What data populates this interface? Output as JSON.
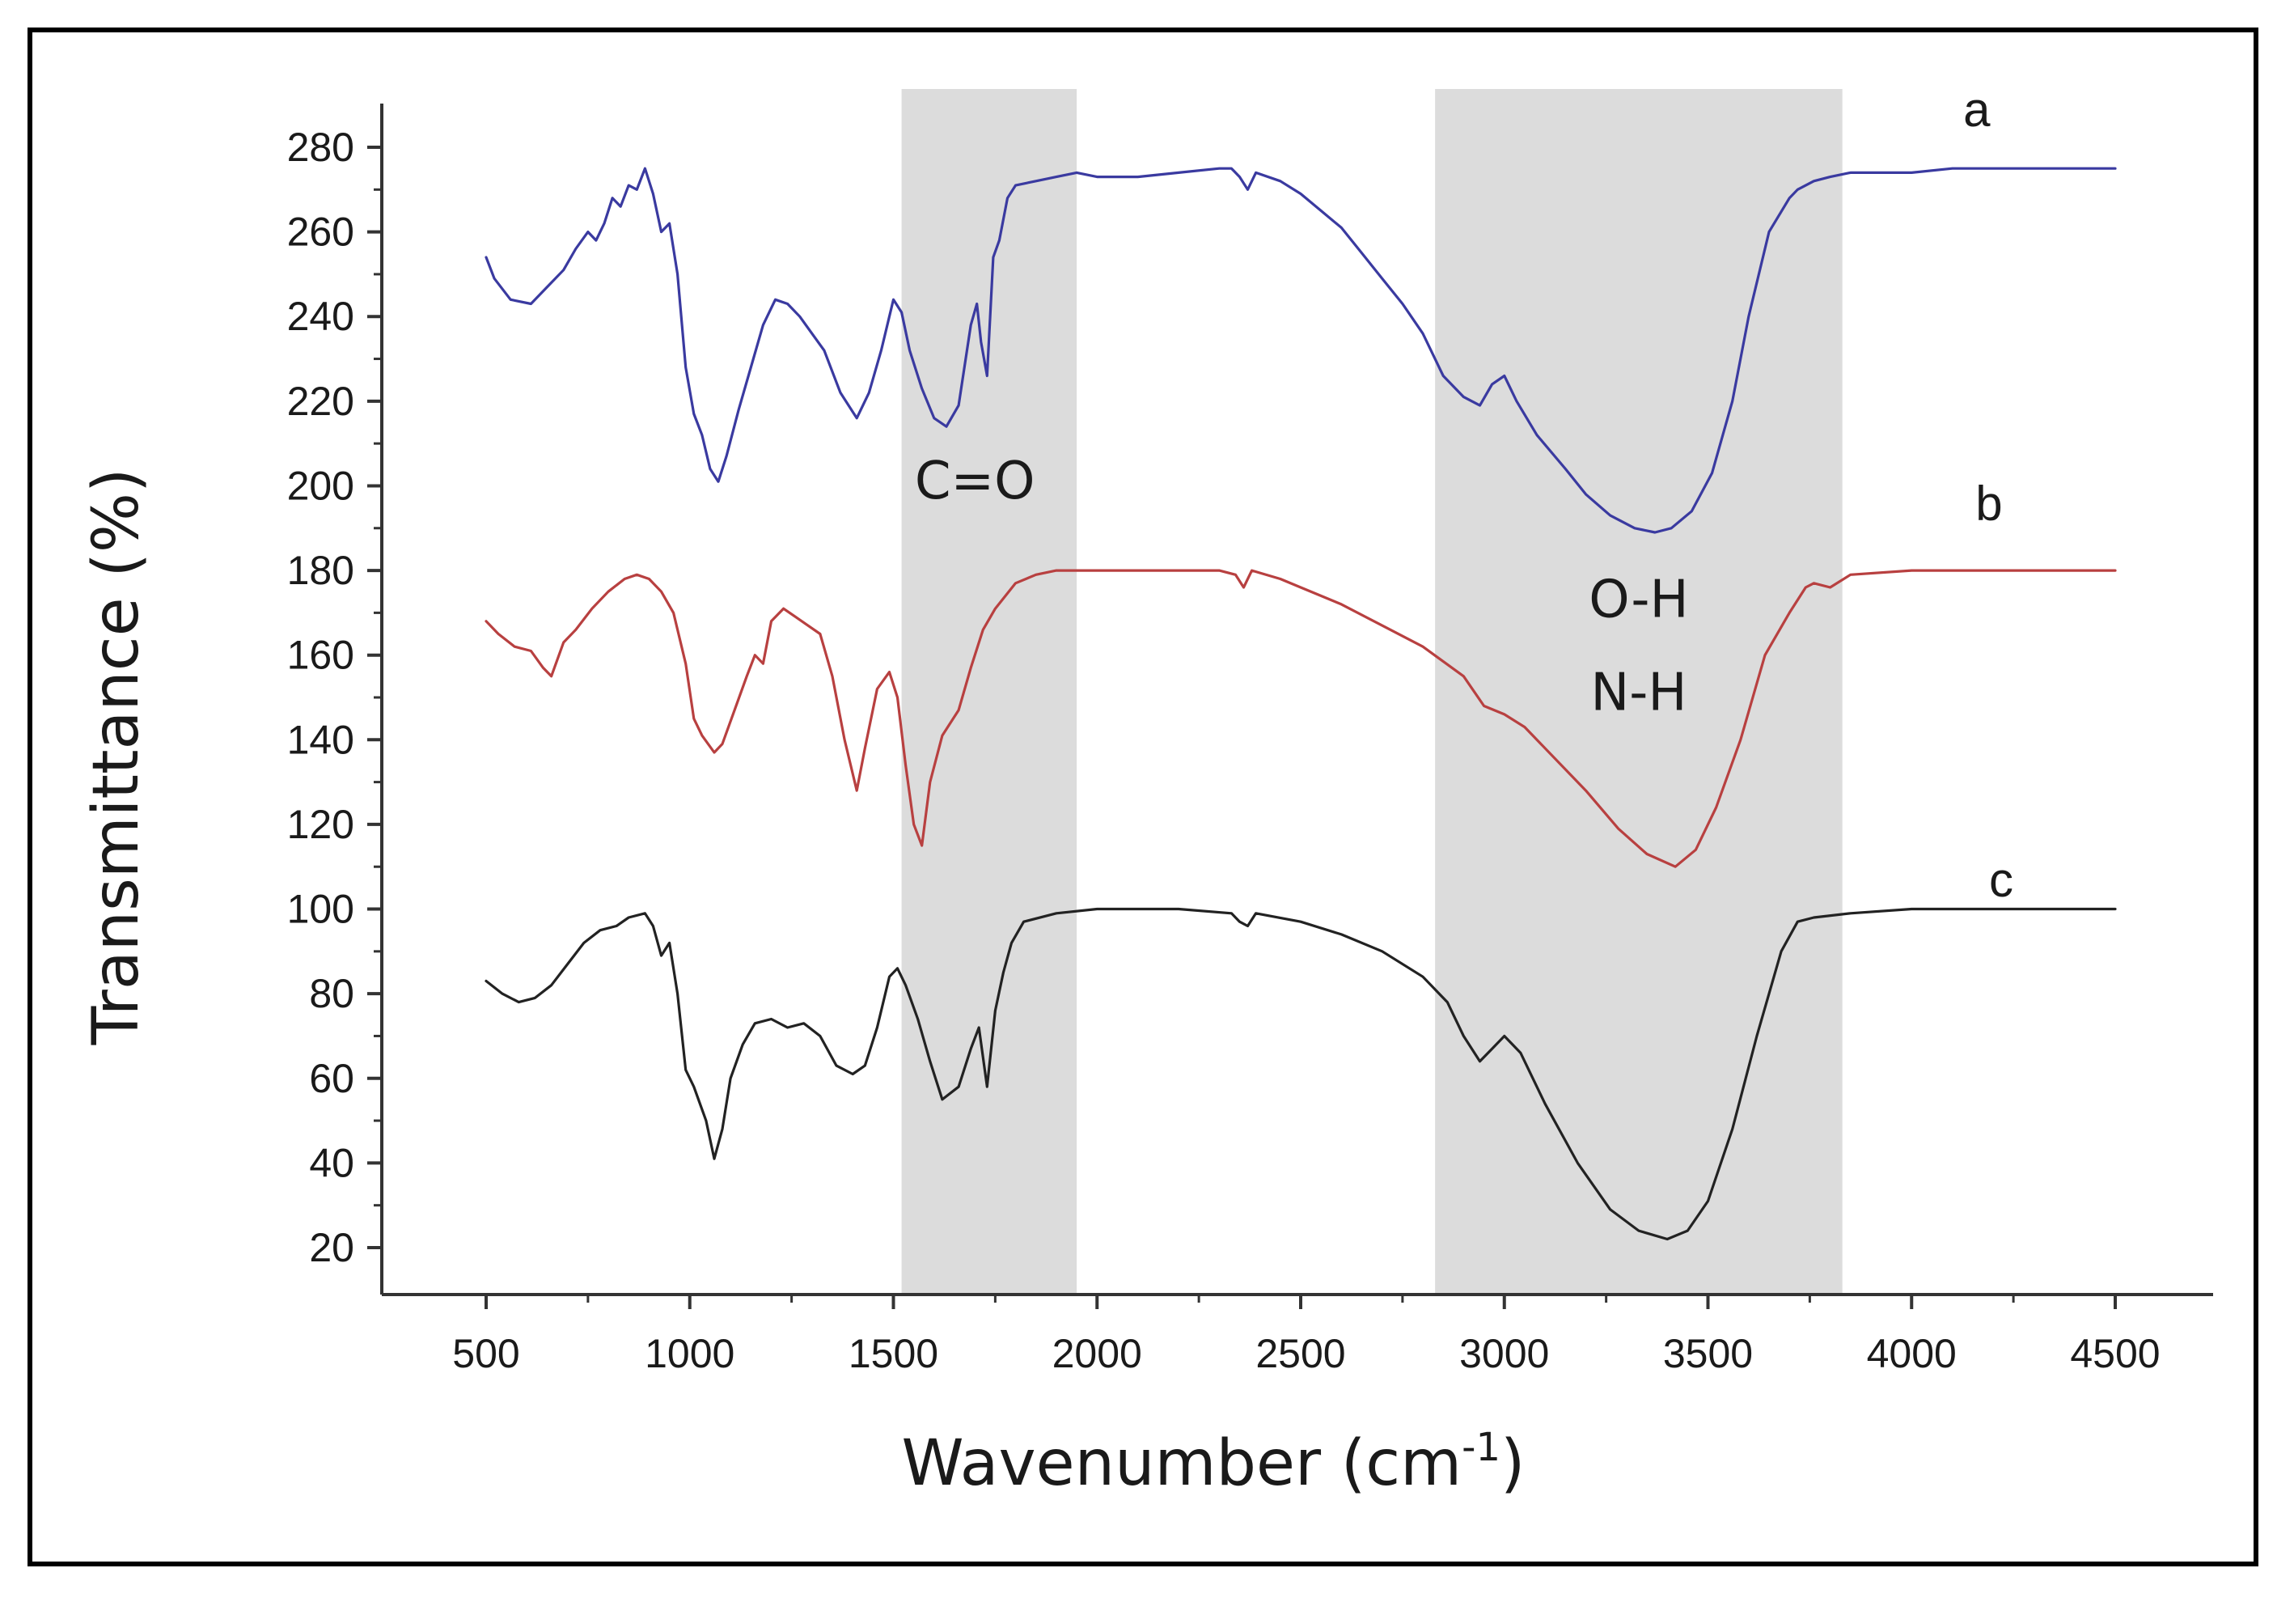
{
  "chart_data": {
    "type": "line",
    "title": "",
    "xlabel_main": "Wavenumber (cm",
    "xlabel_sup": "-1",
    "xlabel_close": ")",
    "ylabel": "Transmittance (%)",
    "xlim": [
      250,
      4750
    ],
    "ylim": [
      10,
      290
    ],
    "xticks": [
      500,
      1000,
      1500,
      2000,
      2500,
      3000,
      3500,
      4000,
      4500
    ],
    "yticks": [
      20,
      40,
      60,
      80,
      100,
      120,
      140,
      160,
      180,
      200,
      220,
      240,
      260,
      280
    ],
    "shaded_regions": [
      {
        "name": "C=O",
        "x_range": [
          1520,
          1950
        ],
        "color": "#dcdcdc"
      },
      {
        "name": "O-H/N-H",
        "x_range": [
          2830,
          3830
        ],
        "color": "#dcdcdc"
      }
    ],
    "annotations": [
      {
        "text": "C=O",
        "x": 1700,
        "y": 197
      },
      {
        "text": "O-H",
        "x": 3330,
        "y": 169
      },
      {
        "text": "N-H",
        "x": 3330,
        "y": 147
      }
    ],
    "series": [
      {
        "name": "a",
        "color": "#3a3aa0",
        "label_x": 4160,
        "label_y": 285,
        "points": [
          [
            500,
            254
          ],
          [
            520,
            249
          ],
          [
            560,
            244
          ],
          [
            610,
            243
          ],
          [
            650,
            247
          ],
          [
            690,
            251
          ],
          [
            720,
            256
          ],
          [
            750,
            260
          ],
          [
            770,
            258
          ],
          [
            790,
            262
          ],
          [
            810,
            268
          ],
          [
            830,
            266
          ],
          [
            850,
            271
          ],
          [
            870,
            270
          ],
          [
            890,
            275
          ],
          [
            910,
            269
          ],
          [
            930,
            260
          ],
          [
            950,
            262
          ],
          [
            970,
            250
          ],
          [
            990,
            228
          ],
          [
            1010,
            217
          ],
          [
            1030,
            212
          ],
          [
            1050,
            204
          ],
          [
            1070,
            201
          ],
          [
            1090,
            207
          ],
          [
            1120,
            218
          ],
          [
            1150,
            228
          ],
          [
            1180,
            238
          ],
          [
            1210,
            244
          ],
          [
            1240,
            243
          ],
          [
            1270,
            240
          ],
          [
            1300,
            236
          ],
          [
            1330,
            232
          ],
          [
            1370,
            222
          ],
          [
            1410,
            216
          ],
          [
            1440,
            222
          ],
          [
            1470,
            232
          ],
          [
            1500,
            244
          ],
          [
            1520,
            241
          ],
          [
            1540,
            232
          ],
          [
            1570,
            223
          ],
          [
            1600,
            216
          ],
          [
            1630,
            214
          ],
          [
            1660,
            219
          ],
          [
            1690,
            238
          ],
          [
            1705,
            243
          ],
          [
            1715,
            234
          ],
          [
            1730,
            226
          ],
          [
            1745,
            254
          ],
          [
            1760,
            258
          ],
          [
            1780,
            268
          ],
          [
            1800,
            271
          ],
          [
            1850,
            272
          ],
          [
            1900,
            273
          ],
          [
            1950,
            274
          ],
          [
            2000,
            273
          ],
          [
            2100,
            273
          ],
          [
            2200,
            274
          ],
          [
            2300,
            275
          ],
          [
            2330,
            275
          ],
          [
            2350,
            273
          ],
          [
            2370,
            270
          ],
          [
            2390,
            274
          ],
          [
            2450,
            272
          ],
          [
            2500,
            269
          ],
          [
            2550,
            265
          ],
          [
            2600,
            261
          ],
          [
            2650,
            255
          ],
          [
            2700,
            249
          ],
          [
            2750,
            243
          ],
          [
            2800,
            236
          ],
          [
            2850,
            226
          ],
          [
            2900,
            221
          ],
          [
            2940,
            219
          ],
          [
            2970,
            224
          ],
          [
            3000,
            226
          ],
          [
            3030,
            220
          ],
          [
            3080,
            212
          ],
          [
            3150,
            204
          ],
          [
            3200,
            198
          ],
          [
            3260,
            193
          ],
          [
            3320,
            190
          ],
          [
            3370,
            189
          ],
          [
            3410,
            190
          ],
          [
            3460,
            194
          ],
          [
            3510,
            203
          ],
          [
            3560,
            220
          ],
          [
            3600,
            240
          ],
          [
            3650,
            260
          ],
          [
            3700,
            268
          ],
          [
            3720,
            270
          ],
          [
            3760,
            272
          ],
          [
            3800,
            273
          ],
          [
            3850,
            274
          ],
          [
            4000,
            274
          ],
          [
            4100,
            275
          ],
          [
            4300,
            275
          ],
          [
            4500,
            275
          ]
        ]
      },
      {
        "name": "b",
        "color": "#b84040",
        "label_x": 4190,
        "label_y": 192,
        "points": [
          [
            500,
            168
          ],
          [
            530,
            165
          ],
          [
            570,
            162
          ],
          [
            610,
            161
          ],
          [
            640,
            157
          ],
          [
            660,
            155
          ],
          [
            690,
            163
          ],
          [
            720,
            166
          ],
          [
            760,
            171
          ],
          [
            800,
            175
          ],
          [
            840,
            178
          ],
          [
            870,
            179
          ],
          [
            900,
            178
          ],
          [
            930,
            175
          ],
          [
            960,
            170
          ],
          [
            990,
            158
          ],
          [
            1010,
            145
          ],
          [
            1030,
            141
          ],
          [
            1060,
            137
          ],
          [
            1080,
            139
          ],
          [
            1110,
            147
          ],
          [
            1140,
            155
          ],
          [
            1160,
            160
          ],
          [
            1180,
            158
          ],
          [
            1200,
            168
          ],
          [
            1230,
            171
          ],
          [
            1260,
            169
          ],
          [
            1290,
            167
          ],
          [
            1320,
            165
          ],
          [
            1350,
            155
          ],
          [
            1380,
            140
          ],
          [
            1410,
            128
          ],
          [
            1430,
            138
          ],
          [
            1460,
            152
          ],
          [
            1490,
            156
          ],
          [
            1510,
            150
          ],
          [
            1530,
            134
          ],
          [
            1550,
            120
          ],
          [
            1570,
            115
          ],
          [
            1590,
            130
          ],
          [
            1620,
            141
          ],
          [
            1660,
            147
          ],
          [
            1690,
            157
          ],
          [
            1720,
            166
          ],
          [
            1750,
            171
          ],
          [
            1800,
            177
          ],
          [
            1850,
            179
          ],
          [
            1900,
            180
          ],
          [
            2000,
            180
          ],
          [
            2200,
            180
          ],
          [
            2300,
            180
          ],
          [
            2340,
            179
          ],
          [
            2360,
            176
          ],
          [
            2380,
            180
          ],
          [
            2450,
            178
          ],
          [
            2500,
            176
          ],
          [
            2600,
            172
          ],
          [
            2700,
            167
          ],
          [
            2800,
            162
          ],
          [
            2900,
            155
          ],
          [
            2950,
            148
          ],
          [
            3000,
            146
          ],
          [
            3050,
            143
          ],
          [
            3100,
            138
          ],
          [
            3200,
            128
          ],
          [
            3280,
            119
          ],
          [
            3350,
            113
          ],
          [
            3420,
            110
          ],
          [
            3470,
            114
          ],
          [
            3520,
            124
          ],
          [
            3580,
            140
          ],
          [
            3640,
            160
          ],
          [
            3700,
            170
          ],
          [
            3740,
            176
          ],
          [
            3760,
            177
          ],
          [
            3800,
            176
          ],
          [
            3850,
            179
          ],
          [
            4000,
            180
          ],
          [
            4500,
            180
          ]
        ]
      },
      {
        "name": "c",
        "color": "#222222",
        "label_x": 4220,
        "label_y": 103,
        "points": [
          [
            500,
            83
          ],
          [
            540,
            80
          ],
          [
            580,
            78
          ],
          [
            620,
            79
          ],
          [
            660,
            82
          ],
          [
            700,
            87
          ],
          [
            740,
            92
          ],
          [
            780,
            95
          ],
          [
            820,
            96
          ],
          [
            850,
            98
          ],
          [
            890,
            99
          ],
          [
            910,
            96
          ],
          [
            930,
            89
          ],
          [
            950,
            92
          ],
          [
            970,
            80
          ],
          [
            990,
            62
          ],
          [
            1010,
            58
          ],
          [
            1040,
            50
          ],
          [
            1060,
            41
          ],
          [
            1080,
            48
          ],
          [
            1100,
            60
          ],
          [
            1130,
            68
          ],
          [
            1160,
            73
          ],
          [
            1200,
            74
          ],
          [
            1240,
            72
          ],
          [
            1280,
            73
          ],
          [
            1320,
            70
          ],
          [
            1360,
            63
          ],
          [
            1400,
            61
          ],
          [
            1430,
            63
          ],
          [
            1460,
            72
          ],
          [
            1490,
            84
          ],
          [
            1510,
            86
          ],
          [
            1530,
            82
          ],
          [
            1560,
            74
          ],
          [
            1590,
            64
          ],
          [
            1620,
            55
          ],
          [
            1660,
            58
          ],
          [
            1690,
            67
          ],
          [
            1710,
            72
          ],
          [
            1730,
            58
          ],
          [
            1750,
            76
          ],
          [
            1770,
            85
          ],
          [
            1790,
            92
          ],
          [
            1820,
            97
          ],
          [
            1900,
            99
          ],
          [
            2000,
            100
          ],
          [
            2200,
            100
          ],
          [
            2330,
            99
          ],
          [
            2350,
            97
          ],
          [
            2370,
            96
          ],
          [
            2390,
            99
          ],
          [
            2500,
            97
          ],
          [
            2600,
            94
          ],
          [
            2700,
            90
          ],
          [
            2800,
            84
          ],
          [
            2860,
            78
          ],
          [
            2900,
            70
          ],
          [
            2940,
            64
          ],
          [
            2970,
            67
          ],
          [
            3000,
            70
          ],
          [
            3040,
            66
          ],
          [
            3100,
            54
          ],
          [
            3180,
            40
          ],
          [
            3260,
            29
          ],
          [
            3330,
            24
          ],
          [
            3400,
            22
          ],
          [
            3450,
            24
          ],
          [
            3500,
            31
          ],
          [
            3560,
            48
          ],
          [
            3620,
            70
          ],
          [
            3680,
            90
          ],
          [
            3720,
            97
          ],
          [
            3760,
            98
          ],
          [
            3850,
            99
          ],
          [
            4000,
            100
          ],
          [
            4500,
            100
          ]
        ]
      }
    ]
  }
}
